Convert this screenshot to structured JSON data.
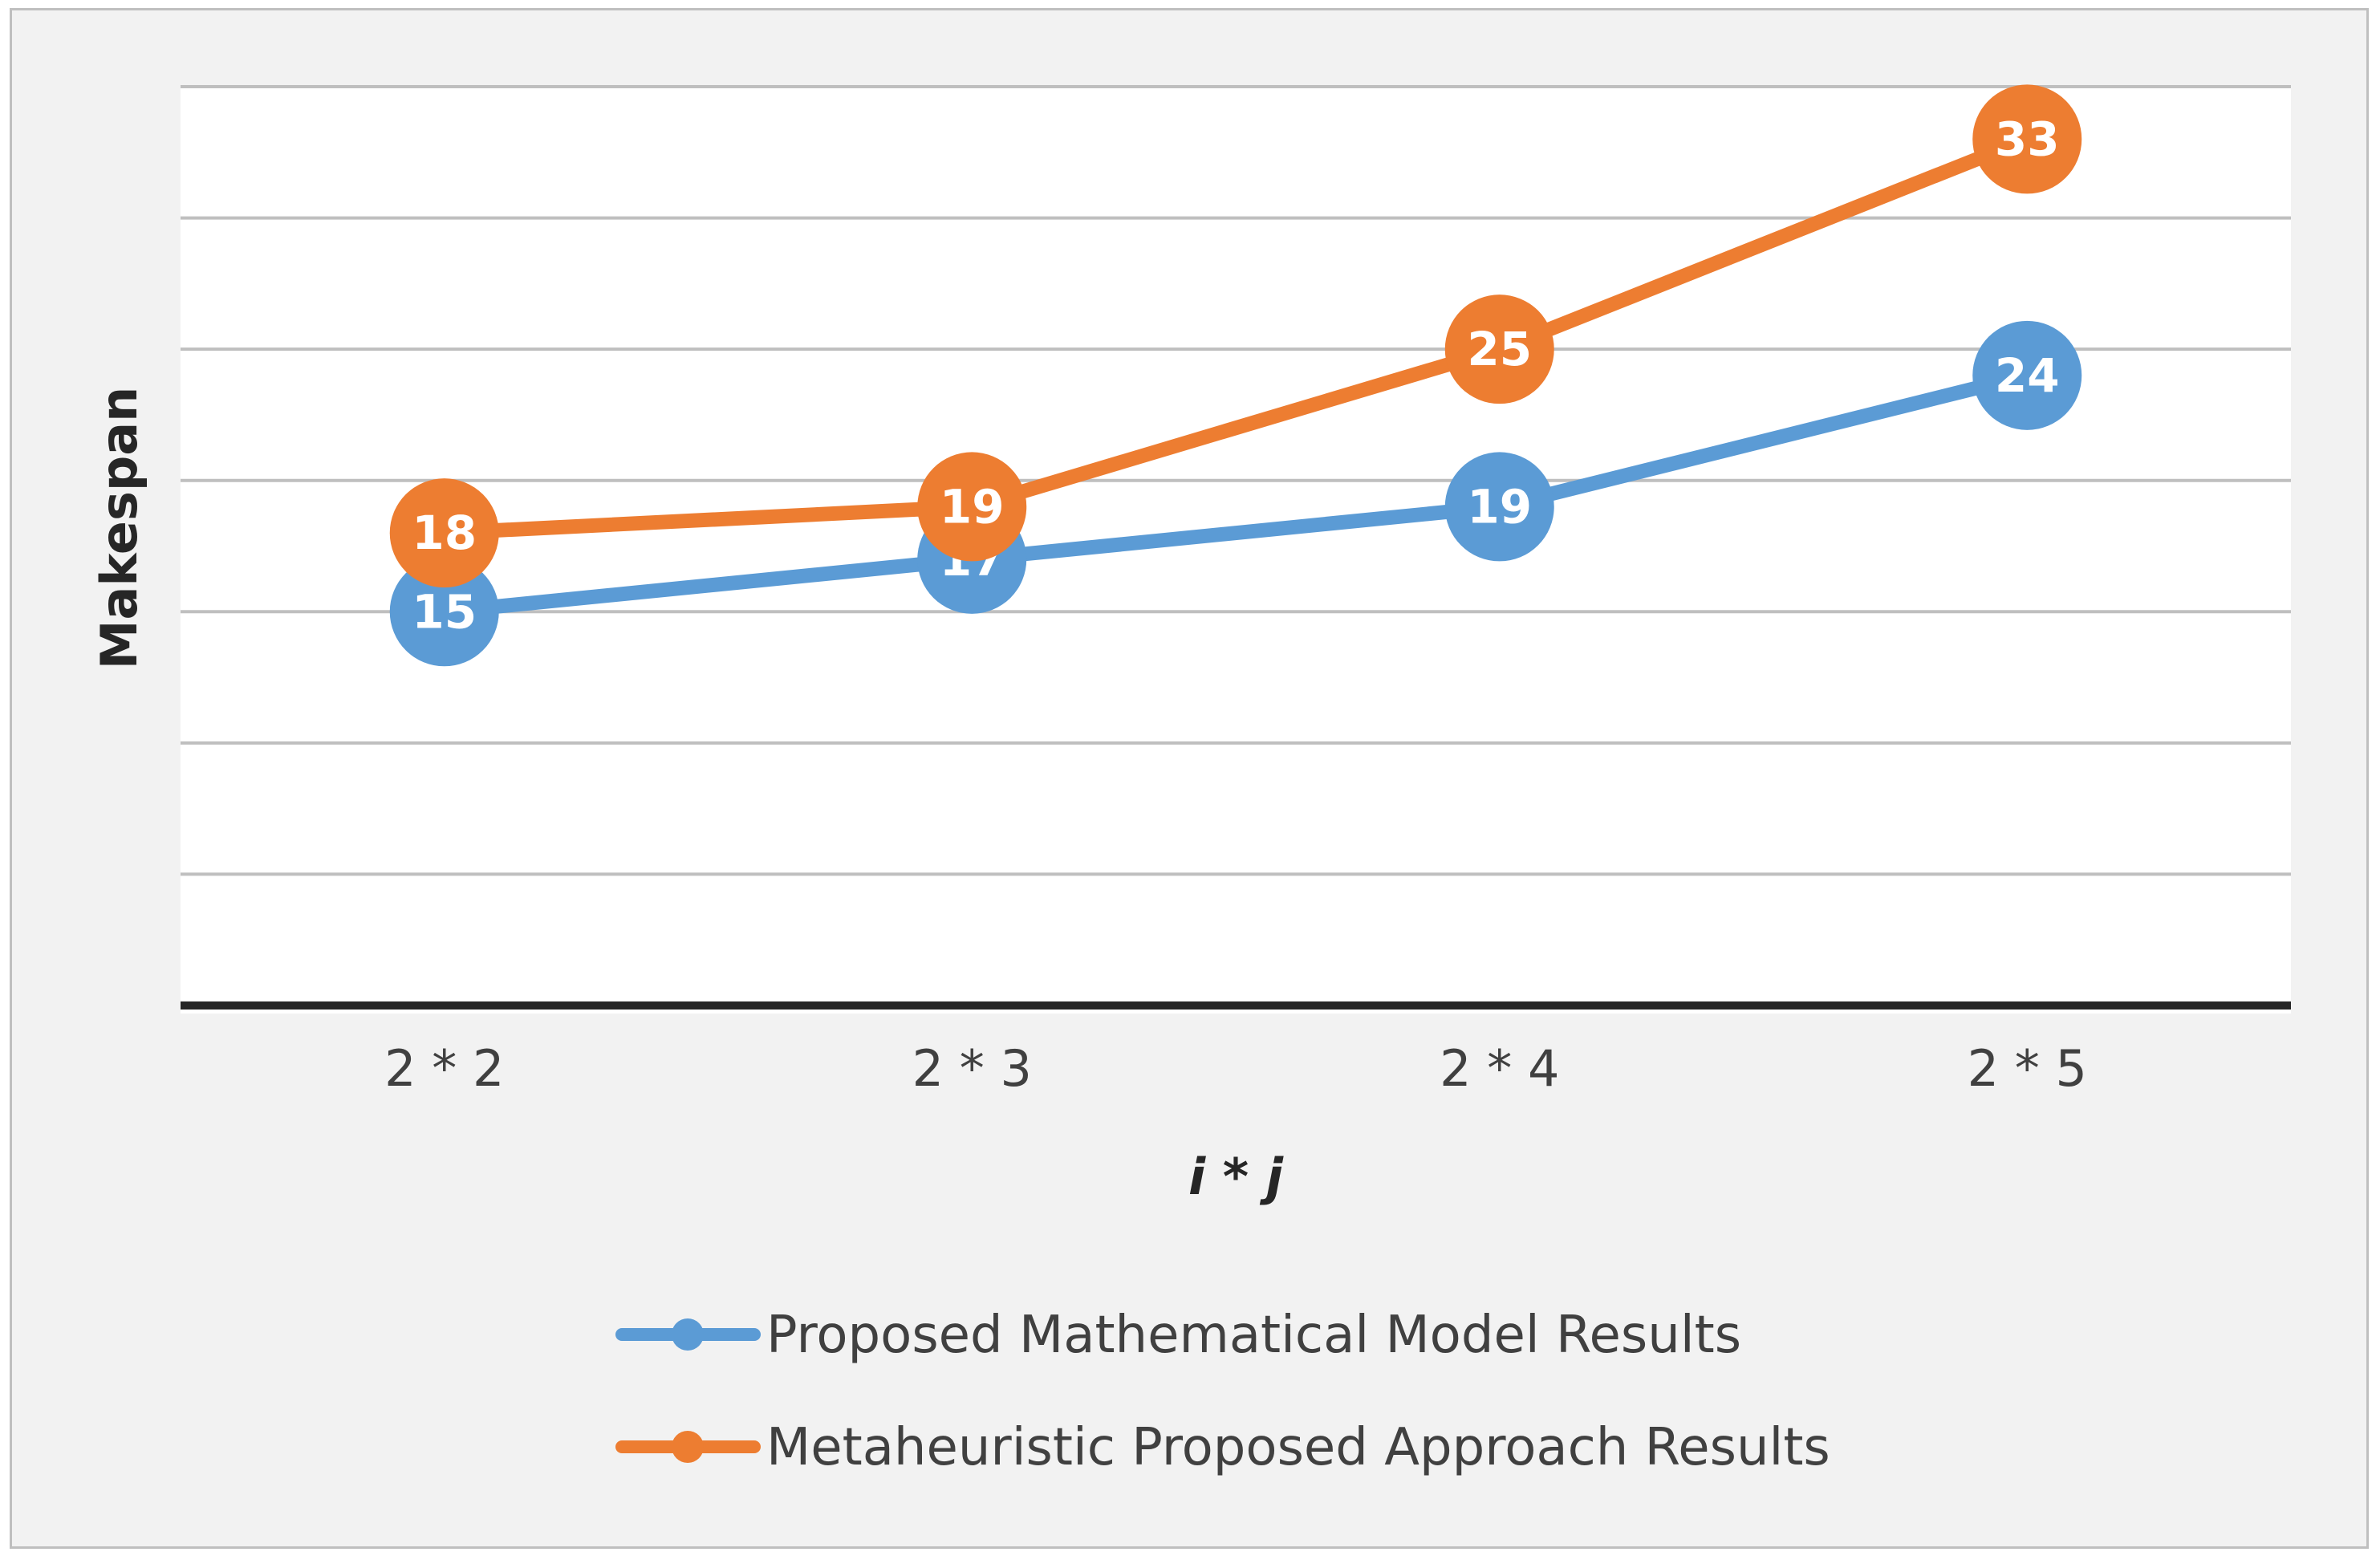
{
  "chart_data": {
    "type": "line",
    "title": "",
    "xlabel": "i * j",
    "ylabel": "Makespan",
    "categories": [
      "2 * 2",
      "2 * 3",
      "2 * 4",
      "2 * 5"
    ],
    "ylim": [
      0,
      35
    ],
    "grid": true,
    "legend_position": "bottom",
    "series": [
      {
        "name": "Proposed Mathematical Model Results",
        "color": "#5b9bd5",
        "values": [
          15,
          17,
          19,
          24
        ],
        "labels": [
          "15",
          "17",
          "19",
          "24"
        ]
      },
      {
        "name": "Metaheuristic Proposed Approach Results",
        "color": "#ed7d31",
        "values": [
          18,
          19,
          25,
          33
        ],
        "labels": [
          "18",
          "19",
          "25",
          "33"
        ]
      }
    ]
  }
}
